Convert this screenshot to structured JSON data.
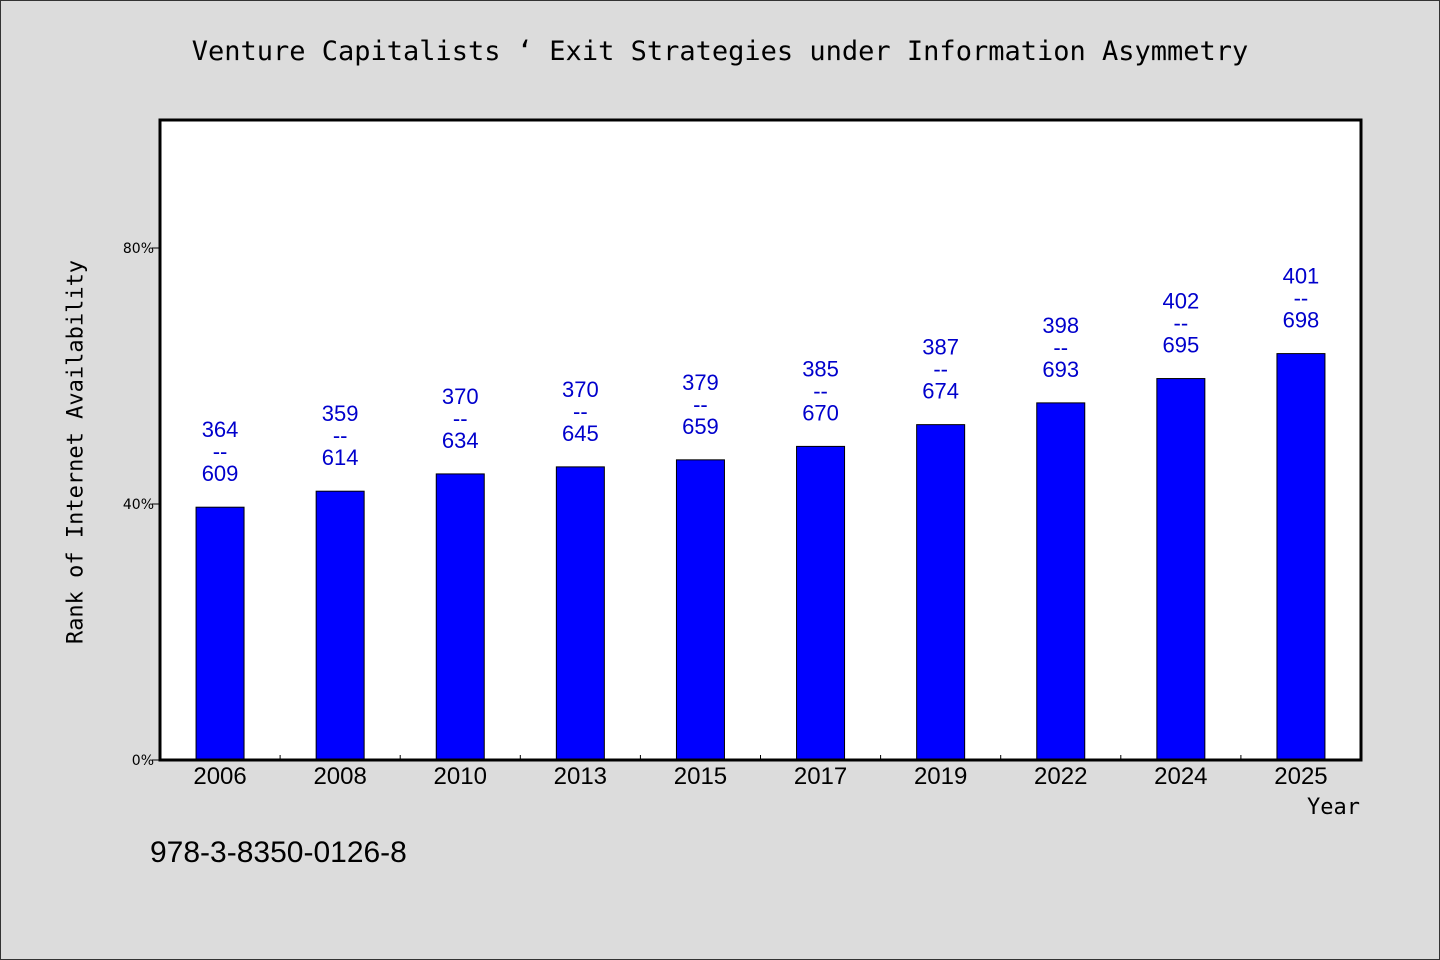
{
  "colors": {
    "background": "#dcdcdc",
    "plot_background": "#ffffff",
    "bar": "#0000ff",
    "label": "#0000cc"
  },
  "chart_data": {
    "type": "bar",
    "title": "Venture Capitalists ‘ Exit Strategies under Information Asymmetry",
    "xlabel": "Year",
    "ylabel": "Rank of Internet Availability",
    "categories": [
      "2006",
      "2008",
      "2010",
      "2013",
      "2015",
      "2017",
      "2019",
      "2022",
      "2024",
      "2025"
    ],
    "values": [
      39.5,
      42.0,
      44.7,
      45.8,
      46.9,
      49.0,
      52.4,
      55.8,
      59.6,
      63.5
    ],
    "value_unit": "%",
    "ylim": [
      0,
      100
    ],
    "yticks": [
      0,
      40,
      80
    ],
    "ytick_labels": [
      "0%",
      "40%",
      "80%"
    ],
    "bar_labels": [
      {
        "top": "364",
        "sep": "--",
        "bottom": "609"
      },
      {
        "top": "359",
        "sep": "--",
        "bottom": "614"
      },
      {
        "top": "370",
        "sep": "--",
        "bottom": "634"
      },
      {
        "top": "370",
        "sep": "--",
        "bottom": "645"
      },
      {
        "top": "379",
        "sep": "--",
        "bottom": "659"
      },
      {
        "top": "385",
        "sep": "--",
        "bottom": "670"
      },
      {
        "top": "387",
        "sep": "--",
        "bottom": "674"
      },
      {
        "top": "398",
        "sep": "--",
        "bottom": "693"
      },
      {
        "top": "402",
        "sep": "--",
        "bottom": "695"
      },
      {
        "top": "401",
        "sep": "--",
        "bottom": "698"
      }
    ],
    "grid": false,
    "legend": "none"
  },
  "footer": {
    "isbn": "978-3-8350-0126-8"
  }
}
